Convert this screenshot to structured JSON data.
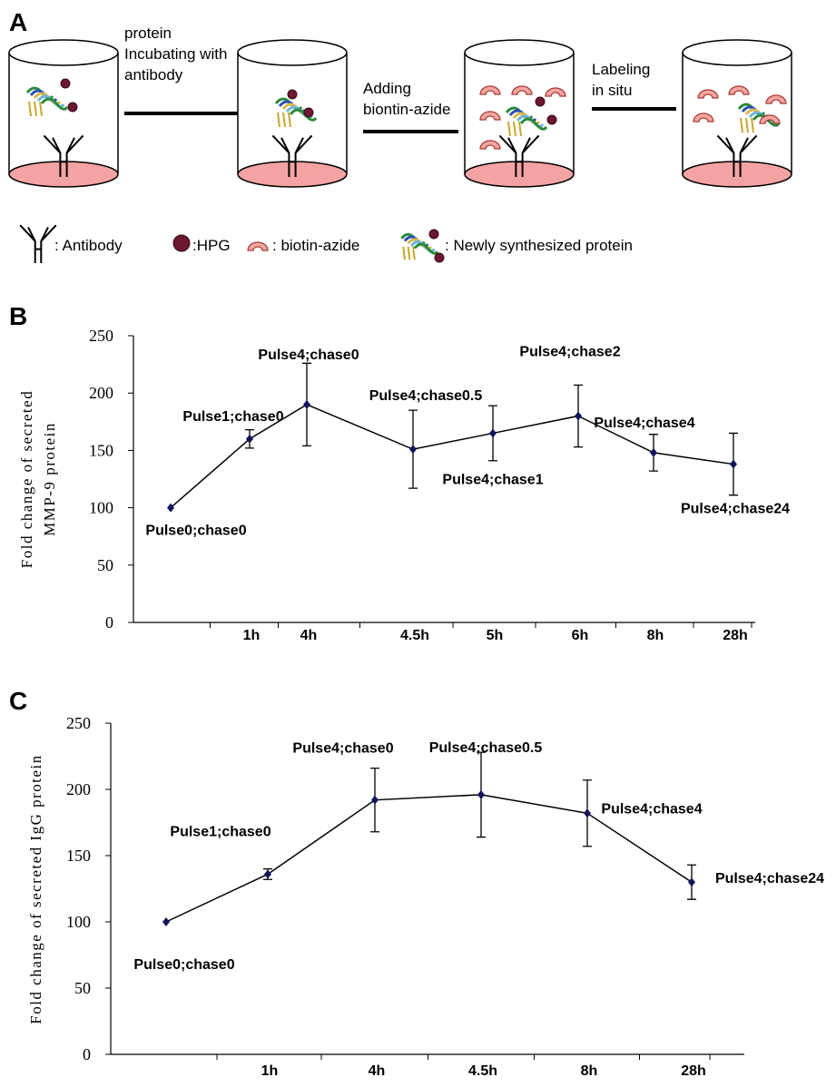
{
  "diagram": {
    "panel_label": "A",
    "steps": [
      [
        "protein",
        "Incubating with",
        "antibody"
      ],
      [
        "Adding",
        "biontin-azide"
      ],
      [
        "Labeling",
        "in situ"
      ]
    ],
    "legend": [
      ": Antibody",
      ":HPG",
      ": biotin-azide",
      ": Newly synthesized protein"
    ]
  },
  "chart_data": [
    {
      "type": "line",
      "panel_label": "B",
      "ylabel_lines": [
        "Fold change of secreted",
        "MMP-9 protein"
      ],
      "categories": [
        null,
        "1h",
        "4h",
        "4.5h",
        "5h",
        "6h",
        "8h",
        "28h"
      ],
      "values": [
        100,
        160,
        190,
        151,
        165,
        180,
        148,
        138
      ],
      "errors": [
        0,
        8,
        36,
        34,
        24,
        27,
        16,
        27
      ],
      "point_labels": [
        "Pulse0;chase0",
        "Pulse1;chase0",
        "Pulse4;chase0",
        "Pulse4;chase0.5",
        "Pulse4;chase1",
        "Pulse4;chase2",
        "Pulse4;chase4",
        "Pulse4;chase24"
      ],
      "color": "#14145a",
      "ylim": [
        0,
        250
      ],
      "yticks": [
        0,
        50,
        100,
        150,
        200,
        250
      ]
    },
    {
      "type": "line",
      "panel_label": "C",
      "ylabel_lines": [
        "Fold change of secreted IgG protein"
      ],
      "categories": [
        null,
        "1h",
        "4h",
        "4.5h",
        "8h",
        "28h"
      ],
      "values": [
        100,
        136,
        192,
        196,
        182,
        130
      ],
      "errors": [
        0,
        4,
        24,
        32,
        25,
        13
      ],
      "point_labels": [
        "Pulse0;chase0",
        "Pulse1;chase0",
        "Pulse4;chase0",
        "Pulse4;chase0.5",
        "Pulse4;chase4",
        "Pulse4;chase24"
      ],
      "color": "#14145a",
      "ylim": [
        0,
        250
      ],
      "yticks": [
        0,
        50,
        100,
        150,
        200,
        250
      ]
    }
  ]
}
